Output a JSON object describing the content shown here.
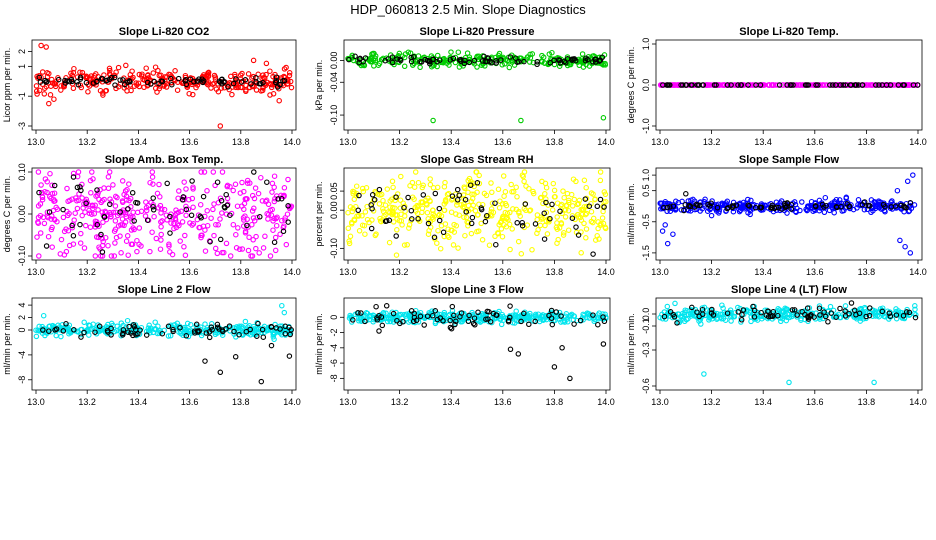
{
  "figure_title": "HDP_060813  2.5 Min. Slope Diagnostics",
  "colors": {
    "black": "#000000",
    "red": "#ff0000",
    "green": "#00cc00",
    "magenta": "#ff00ff",
    "yellow": "#ffff00",
    "blue": "#0000ff",
    "cyan": "#00e5ee"
  },
  "chart_data": [
    {
      "type": "scatter",
      "title": "Slope Li-820 CO2",
      "ylabel": "Licor ppm per min.",
      "xlabel": "",
      "xlim": [
        13.0,
        14.0
      ],
      "ylim": [
        -3,
        2.5
      ],
      "xticks": [
        "13.0",
        "13.2",
        "13.4",
        "13.6",
        "13.8",
        "14.0"
      ],
      "yticks": [
        "-3",
        "-1",
        "1",
        "2"
      ],
      "ytick_values": [
        -3,
        -1,
        1,
        2
      ],
      "series": [
        {
          "name": "all",
          "color": "#ff0000",
          "center": 0.0,
          "spread": 0.4,
          "count": 300,
          "outliers": [
            [
              13.02,
              2.4
            ],
            [
              13.04,
              2.3
            ],
            [
              13.05,
              -1.5
            ],
            [
              13.07,
              -1.2
            ],
            [
              13.72,
              -3.0
            ],
            [
              13.85,
              1.4
            ],
            [
              13.9,
              1.2
            ],
            [
              13.95,
              -1.3
            ]
          ]
        },
        {
          "name": "selected",
          "color": "#000000",
          "center": 0.0,
          "spread": 0.15,
          "count": 80,
          "outliers": []
        }
      ]
    },
    {
      "type": "scatter",
      "title": "Slope Li-820 Pressure",
      "ylabel": "kPa per min.",
      "xlabel": "",
      "xlim": [
        13.0,
        14.0
      ],
      "ylim": [
        -0.12,
        0.03
      ],
      "xticks": [
        "13.0",
        "13.2",
        "13.4",
        "13.6",
        "13.8",
        "14.0"
      ],
      "yticks": [
        "-0.10",
        "-0.04",
        "0.00"
      ],
      "ytick_values": [
        -0.1,
        -0.04,
        0.0
      ],
      "series": [
        {
          "name": "all",
          "color": "#00cc00",
          "center": 0.0,
          "spread": 0.006,
          "count": 280,
          "outliers": [
            [
              13.33,
              -0.11
            ],
            [
              13.67,
              -0.11
            ],
            [
              13.99,
              -0.105
            ],
            [
              13.1,
              -0.01
            ],
            [
              13.5,
              -0.012
            ]
          ]
        },
        {
          "name": "selected",
          "color": "#000000",
          "center": 0.0,
          "spread": 0.003,
          "count": 80,
          "outliers": []
        }
      ]
    },
    {
      "type": "scatter",
      "title": "Slope Li-820 Temp.",
      "ylabel": "degrees C per min.",
      "xlabel": "",
      "xlim": [
        13.0,
        14.0
      ],
      "ylim": [
        -1.0,
        1.0
      ],
      "xticks": [
        "13.0",
        "13.2",
        "13.4",
        "13.6",
        "13.8",
        "14.0"
      ],
      "yticks": [
        "-1.0",
        "0.0",
        "1.0"
      ],
      "ytick_values": [
        -1.0,
        0.0,
        1.0
      ],
      "series": [
        {
          "name": "all",
          "color": "#ff00ff",
          "center": 0.0,
          "spread": 0.0,
          "count": 250,
          "outliers": []
        },
        {
          "name": "selected",
          "color": "#000000",
          "center": 0.0,
          "spread": 0.0,
          "count": 60,
          "outliers": []
        }
      ]
    },
    {
      "type": "scatter",
      "title": "Slope Amb. Box Temp.",
      "ylabel": "degrees C per min.",
      "xlabel": "",
      "xlim": [
        13.0,
        14.0
      ],
      "ylim": [
        -0.1,
        0.1
      ],
      "xticks": [
        "13.0",
        "13.2",
        "13.4",
        "13.6",
        "13.8",
        "14.0"
      ],
      "yticks": [
        "-0.10",
        "0.00",
        "0.10"
      ],
      "ytick_values": [
        -0.1,
        0.0,
        0.1
      ],
      "series": [
        {
          "name": "all",
          "color": "#ff00ff",
          "center": 0.0,
          "spread": 0.05,
          "count": 420,
          "outliers": []
        },
        {
          "name": "selected",
          "color": "#000000",
          "center": 0.0,
          "spread": 0.05,
          "count": 60,
          "outliers": []
        }
      ]
    },
    {
      "type": "scatter",
      "title": "Slope Gas Stream RH",
      "ylabel": "percent per min.",
      "xlabel": "",
      "xlim": [
        13.0,
        14.0
      ],
      "ylim": [
        -0.12,
        0.1
      ],
      "xticks": [
        "13.0",
        "13.2",
        "13.4",
        "13.6",
        "13.8",
        "14.0"
      ],
      "yticks": [
        "-0.10",
        "0.00",
        "0.05"
      ],
      "ytick_values": [
        -0.1,
        0.0,
        0.05
      ],
      "series": [
        {
          "name": "all",
          "color": "#ffff00",
          "center": 0.0,
          "spread": 0.045,
          "count": 420,
          "outliers": []
        },
        {
          "name": "selected",
          "color": "#000000",
          "center": 0.0,
          "spread": 0.04,
          "count": 60,
          "outliers": [
            [
              13.95,
              -0.115
            ]
          ]
        }
      ]
    },
    {
      "type": "scatter",
      "title": "Slope Sample Flow",
      "ylabel": "ml/min per min.",
      "xlabel": "",
      "xlim": [
        13.0,
        14.0
      ],
      "ylim": [
        -1.6,
        1.1
      ],
      "xticks": [
        "13.0",
        "13.2",
        "13.4",
        "13.6",
        "13.8",
        "14.0"
      ],
      "yticks": [
        "-1.5",
        "-0.5",
        "0.5",
        "1.0"
      ],
      "ytick_values": [
        -1.5,
        -0.5,
        0.5,
        1.0
      ],
      "series": [
        {
          "name": "all",
          "color": "#0000ff",
          "center": 0.0,
          "spread": 0.1,
          "count": 320,
          "outliers": [
            [
              13.01,
              -0.8
            ],
            [
              13.02,
              -0.6
            ],
            [
              13.03,
              -1.2
            ],
            [
              13.05,
              -0.9
            ],
            [
              13.2,
              -0.3
            ],
            [
              13.93,
              -1.1
            ],
            [
              13.95,
              -1.3
            ],
            [
              13.97,
              -1.5
            ],
            [
              13.96,
              0.8
            ],
            [
              13.98,
              1.0
            ],
            [
              13.92,
              0.5
            ]
          ]
        },
        {
          "name": "selected",
          "color": "#000000",
          "center": 0.0,
          "spread": 0.06,
          "count": 70,
          "outliers": [
            [
              13.1,
              0.4
            ]
          ]
        }
      ]
    },
    {
      "type": "scatter",
      "title": "Slope Line 2 Flow",
      "ylabel": "ml/min per min.",
      "xlabel": "",
      "xlim": [
        13.0,
        14.0
      ],
      "ylim": [
        -9,
        4.5
      ],
      "xticks": [
        "13.0",
        "13.2",
        "13.4",
        "13.6",
        "13.8",
        "14.0"
      ],
      "yticks": [
        "-8",
        "-4",
        "0",
        "2",
        "4"
      ],
      "ytick_values": [
        -8,
        -4,
        0,
        2,
        4
      ],
      "series": [
        {
          "name": "all",
          "color": "#00e5ee",
          "center": 0.0,
          "spread": 0.5,
          "count": 320,
          "outliers": [
            [
              13.03,
              2.3
            ],
            [
              13.96,
              3.9
            ],
            [
              13.97,
              2.8
            ],
            [
              13.93,
              -1.5
            ]
          ]
        },
        {
          "name": "selected",
          "color": "#000000",
          "center": 0.0,
          "spread": 0.5,
          "count": 70,
          "outliers": [
            [
              13.66,
              -5.0
            ],
            [
              13.72,
              -6.8
            ],
            [
              13.78,
              -4.3
            ],
            [
              13.88,
              -8.3
            ],
            [
              13.92,
              -2.5
            ],
            [
              13.99,
              -4.2
            ]
          ]
        }
      ]
    },
    {
      "type": "scatter",
      "title": "Slope Line 3 Flow",
      "ylabel": "ml/min per min.",
      "xlabel": "",
      "xlim": [
        13.0,
        14.0
      ],
      "ylim": [
        -9,
        2
      ],
      "xticks": [
        "13.0",
        "13.2",
        "13.4",
        "13.6",
        "13.8",
        "14.0"
      ],
      "yticks": [
        "-8",
        "-6",
        "-4",
        "-2",
        "0"
      ],
      "ytick_values": [
        -8,
        -6,
        -4,
        -2,
        0
      ],
      "series": [
        {
          "name": "all",
          "color": "#00e5ee",
          "center": 0.0,
          "spread": 0.35,
          "count": 340,
          "outliers": []
        },
        {
          "name": "selected",
          "color": "#000000",
          "center": 0.0,
          "spread": 0.7,
          "count": 70,
          "outliers": [
            [
              13.63,
              -4.2
            ],
            [
              13.66,
              -4.8
            ],
            [
              13.8,
              -6.5
            ],
            [
              13.86,
              -8.0
            ],
            [
              13.83,
              -4.0
            ],
            [
              13.99,
              -3.5
            ],
            [
              13.15,
              1.5
            ],
            [
              13.12,
              -1.8
            ]
          ]
        }
      ]
    },
    {
      "type": "scatter",
      "title": "Slope Line 4 (LT) Flow",
      "ylabel": "ml/min per min.",
      "xlabel": "",
      "xlim": [
        13.0,
        14.0
      ],
      "ylim": [
        -0.6,
        0.1
      ],
      "xticks": [
        "13.0",
        "13.2",
        "13.4",
        "13.6",
        "13.8",
        "14.0"
      ],
      "yticks": [
        "-0.6",
        "-0.3",
        "-0.1",
        "0.0"
      ],
      "ytick_values": [
        -0.6,
        -0.3,
        -0.1,
        0.0
      ],
      "series": [
        {
          "name": "all",
          "color": "#00e5ee",
          "center": 0.0,
          "spread": 0.03,
          "count": 320,
          "outliers": [
            [
              13.17,
              -0.5
            ],
            [
              13.5,
              -0.57
            ],
            [
              13.83,
              -0.57
            ]
          ]
        },
        {
          "name": "selected",
          "color": "#000000",
          "center": 0.0,
          "spread": 0.03,
          "count": 70,
          "outliers": []
        }
      ]
    }
  ]
}
